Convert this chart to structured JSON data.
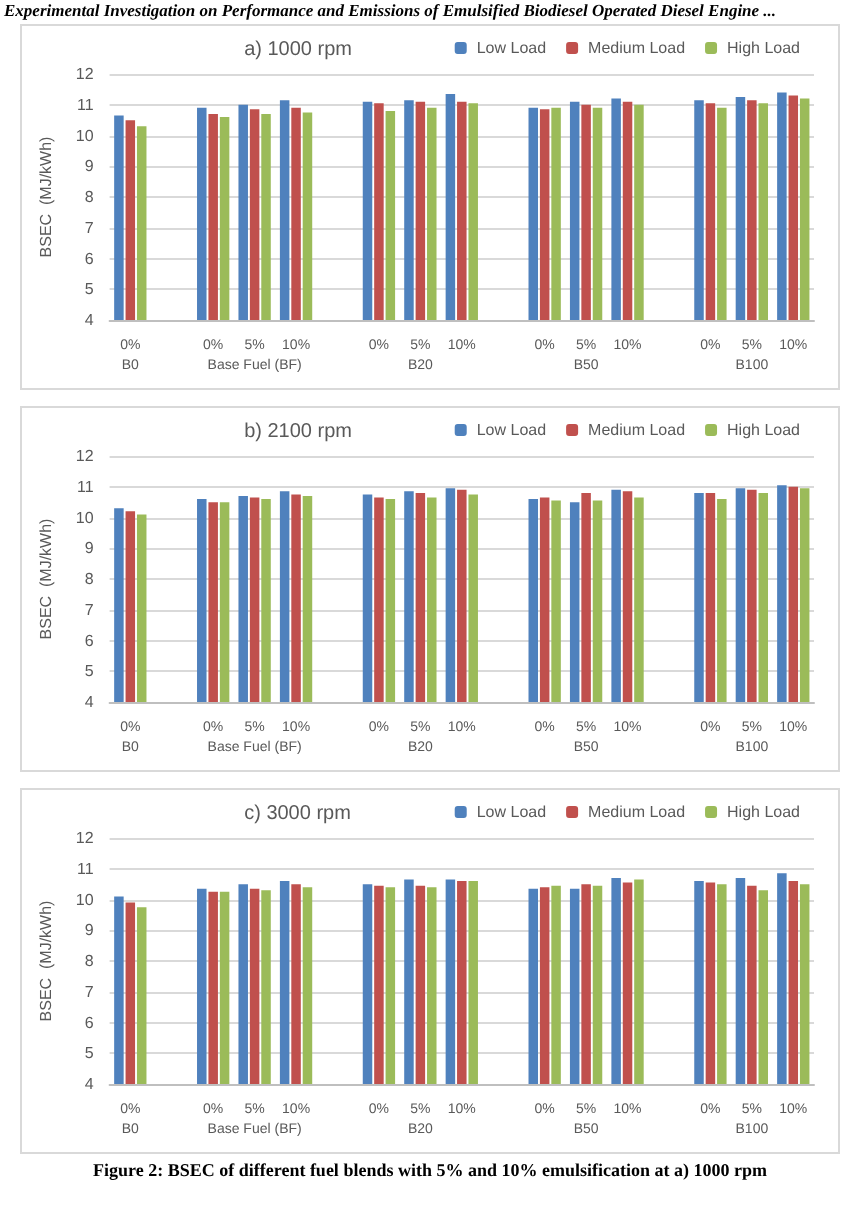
{
  "chart_data": [
    {
      "type": "bar",
      "title": "a) 1000 rpm",
      "ylabel": "BSEC  (MJ/kWh)",
      "annotations": [
        "Experimental Investigation on Performance and Emissions of Emulsified Biodiesel Operated Diesel Engine ..."
      ],
      "categories": [
        "0%\nB0",
        null,
        "0%",
        "5%\nBase Fuel (BF)",
        "10%",
        null,
        "0%",
        "5%\nB20",
        "10%",
        null,
        "0%",
        "5%\nB50",
        "10%",
        null,
        "0%",
        "5%\nB100",
        "10%"
      ],
      "series": [
        {
          "name": "Low Load",
          "color": "#4f81bd",
          "values": [
            10.65,
            null,
            10.9,
            11.0,
            11.15,
            null,
            11.1,
            11.15,
            11.35,
            null,
            10.9,
            11.1,
            11.2,
            null,
            11.15,
            11.25,
            11.4
          ]
        },
        {
          "name": "Medium Load",
          "color": "#c0504d",
          "values": [
            10.5,
            null,
            10.7,
            10.85,
            10.9,
            null,
            11.05,
            11.1,
            11.1,
            null,
            10.85,
            11.0,
            11.1,
            null,
            11.05,
            11.15,
            11.3
          ]
        },
        {
          "name": "High Load",
          "color": "#9bbb59",
          "values": [
            10.3,
            null,
            10.6,
            10.7,
            10.75,
            null,
            10.8,
            10.9,
            11.05,
            null,
            10.9,
            10.9,
            11.0,
            null,
            10.9,
            11.05,
            11.2
          ]
        }
      ],
      "ylim": [
        4,
        12
      ],
      "yticks": [
        4,
        5,
        6,
        7,
        8,
        9,
        10,
        11,
        12
      ],
      "grid": "y",
      "legend": "top right"
    },
    {
      "type": "bar",
      "title": "b) 2100 rpm",
      "ylabel": "BSEC  (MJ/kWh)",
      "categories": [
        "0%\nB0",
        null,
        "0%",
        "5%\nBase Fuel (BF)",
        "10%",
        null,
        "0%",
        "5%\nB20",
        "10%",
        null,
        "0%",
        "5%\nB50",
        "10%",
        null,
        "0%",
        "5%\nB100",
        "10%"
      ],
      "series": [
        {
          "name": "Low Load",
          "color": "#4f81bd",
          "values": [
            10.3,
            null,
            10.6,
            10.7,
            10.85,
            null,
            10.75,
            10.85,
            10.95,
            null,
            10.6,
            10.5,
            10.9,
            null,
            10.8,
            10.95,
            11.05
          ]
        },
        {
          "name": "Medium Load",
          "color": "#c0504d",
          "values": [
            10.2,
            null,
            10.5,
            10.65,
            10.75,
            null,
            10.65,
            10.8,
            10.9,
            null,
            10.65,
            10.8,
            10.85,
            null,
            10.8,
            10.9,
            11.0
          ]
        },
        {
          "name": "High Load",
          "color": "#9bbb59",
          "values": [
            10.1,
            null,
            10.5,
            10.6,
            10.7,
            null,
            10.6,
            10.65,
            10.75,
            null,
            10.55,
            10.55,
            10.65,
            null,
            10.6,
            10.8,
            10.95
          ]
        }
      ],
      "ylim": [
        4,
        12
      ],
      "yticks": [
        4,
        5,
        6,
        7,
        8,
        9,
        10,
        11,
        12
      ],
      "grid": "y",
      "legend": "top right"
    },
    {
      "type": "bar",
      "title": "c) 3000 rpm",
      "ylabel": "BSEC  (MJ/kWh)",
      "annotations": [
        "Figure 2: BSEC of different fuel blends with 5% and 10% emulsification at a) 1000 rpm"
      ],
      "categories": [
        "0%\nB0",
        null,
        "0%",
        "5%\nBase Fuel (BF)",
        "10%",
        null,
        "0%",
        "5%\nB20",
        "10%",
        null,
        "0%",
        "5%\nB50",
        "10%",
        null,
        "0%",
        "5%\nB100",
        "10%"
      ],
      "series": [
        {
          "name": "Low Load",
          "color": "#4f81bd",
          "values": [
            10.1,
            null,
            10.35,
            10.5,
            10.6,
            null,
            10.5,
            10.65,
            10.65,
            null,
            10.35,
            10.35,
            10.7,
            null,
            10.6,
            10.7,
            10.85
          ]
        },
        {
          "name": "Medium Load",
          "color": "#c0504d",
          "values": [
            9.9,
            null,
            10.25,
            10.35,
            10.5,
            null,
            10.45,
            10.45,
            10.6,
            null,
            10.4,
            10.5,
            10.55,
            null,
            10.55,
            10.45,
            10.6
          ]
        },
        {
          "name": "High Load",
          "color": "#9bbb59",
          "values": [
            9.75,
            null,
            10.25,
            10.3,
            10.4,
            null,
            10.4,
            10.4,
            10.6,
            null,
            10.45,
            10.45,
            10.65,
            null,
            10.5,
            10.3,
            10.5
          ]
        }
      ],
      "ylim": [
        4,
        12
      ],
      "yticks": [
        4,
        5,
        6,
        7,
        8,
        9,
        10,
        11,
        12
      ],
      "grid": "y",
      "legend": "top right"
    }
  ]
}
